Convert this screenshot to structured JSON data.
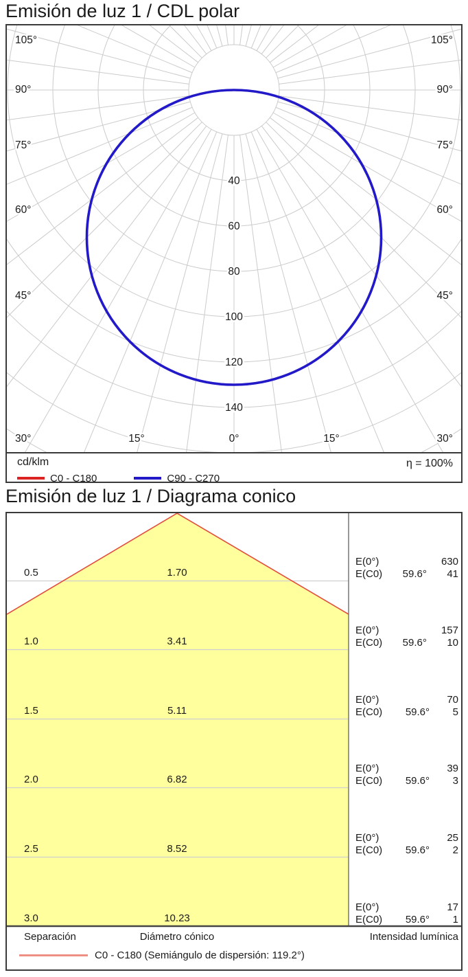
{
  "page": {
    "title_polar": "Emisión de luz 1 / CDL polar",
    "title_cone": "Emisión de luz 1 / Diagrama conico"
  },
  "colors": {
    "curve_blue": "#2219C8",
    "curve_red": "#DD2222",
    "cone_fill": "#FFFF9E",
    "cone_edge": "#E14E3C",
    "footer_swatch": "#ED9083",
    "grid": "#CBCBCB",
    "frame": "#3a3a3a"
  },
  "polar": {
    "unit_label": "cd/klm",
    "efficiency_label": "η = 100%",
    "legend": [
      {
        "label": "C0 - C180",
        "color_key": "curve_red"
      },
      {
        "label": "C90 - C270",
        "color_key": "curve_blue"
      }
    ],
    "radial_ticks": [
      "40",
      "60",
      "80",
      "100",
      "120",
      "140"
    ],
    "side_angle_labels": [
      "105°",
      "90°",
      "75°",
      "60°",
      "45°"
    ],
    "bottom_angle_labels": [
      "30°",
      "15°",
      "0°",
      "15°",
      "30°"
    ],
    "nadir_intensity_cd_klm": 130
  },
  "cone": {
    "rows": [
      {
        "separation": "0.5",
        "diameter": "1.70",
        "e0_label": "E(0°)",
        "e0": "630",
        "ec0_label": "E(C0)",
        "angle": "59.6°",
        "ec0": "41"
      },
      {
        "separation": "1.0",
        "diameter": "3.41",
        "e0_label": "E(0°)",
        "e0": "157",
        "ec0_label": "E(C0)",
        "angle": "59.6°",
        "ec0": "10"
      },
      {
        "separation": "1.5",
        "diameter": "5.11",
        "e0_label": "E(0°)",
        "e0": "70",
        "ec0_label": "E(C0)",
        "angle": "59.6°",
        "ec0": "5"
      },
      {
        "separation": "2.0",
        "diameter": "6.82",
        "e0_label": "E(0°)",
        "e0": "39",
        "ec0_label": "E(C0)",
        "angle": "59.6°",
        "ec0": "3"
      },
      {
        "separation": "2.5",
        "diameter": "8.52",
        "e0_label": "E(0°)",
        "e0": "25",
        "ec0_label": "E(C0)",
        "angle": "59.6°",
        "ec0": "2"
      },
      {
        "separation": "3.0",
        "diameter": "10.23",
        "e0_label": "E(0°)",
        "e0": "17",
        "ec0_label": "E(C0)",
        "angle": "59.6°",
        "ec0": "1"
      }
    ],
    "footer": {
      "col1": "Separación",
      "col2": "Diámetro cónico",
      "col3": "Intensidad lumínica",
      "legend": "C0 - C180 (Semiángulo de dispersión: 119.2°)"
    }
  },
  "chart_data": [
    {
      "type": "line",
      "subtype": "polar-intensity-distribution",
      "title": "Emisión de luz 1 / CDL polar",
      "unit": "cd/klm",
      "efficiency": "η = 100%",
      "angle_tick_labels_deg": [
        0,
        15,
        30,
        45,
        60,
        75,
        90,
        105
      ],
      "radial_ticks_cd_klm": [
        20,
        40,
        60,
        80,
        100,
        120,
        140
      ],
      "radial_axis_max": 160,
      "grid": true,
      "legend_position": "bottom-left",
      "series": [
        {
          "name": "C0 - C180",
          "color": "#DD2222",
          "gamma_deg": [
            0,
            15,
            30,
            45,
            60,
            75,
            90
          ],
          "values_cd_klm": [
            130,
            126,
            113,
            92,
            65,
            34,
            0
          ]
        },
        {
          "name": "C90 - C270",
          "color": "#2219C8",
          "gamma_deg": [
            0,
            15,
            30,
            45,
            60,
            75,
            90
          ],
          "values_cd_klm": [
            130,
            126,
            113,
            92,
            65,
            34,
            0
          ]
        }
      ],
      "note": "Both C-plane curves overlap as a Lambertian-like circle through the pole, max 130 cd/klm at 0°"
    },
    {
      "type": "table",
      "subtype": "cone-diagram",
      "title": "Emisión de luz 1 / Diagrama conico",
      "columns": [
        "Separación",
        "Diámetro cónico",
        "E(0°)",
        "E(C0) 59.6°"
      ],
      "rows": [
        [
          0.5,
          1.7,
          630,
          41
        ],
        [
          1.0,
          3.41,
          157,
          10
        ],
        [
          1.5,
          5.11,
          70,
          5
        ],
        [
          2.0,
          6.82,
          39,
          3
        ],
        [
          2.5,
          8.52,
          25,
          2
        ],
        [
          3.0,
          10.23,
          17,
          1
        ]
      ],
      "beam_legend": "C0 - C180 (Semiángulo de dispersión: 119.2°)",
      "beam_semi_angle_deg": 119.2
    }
  ]
}
